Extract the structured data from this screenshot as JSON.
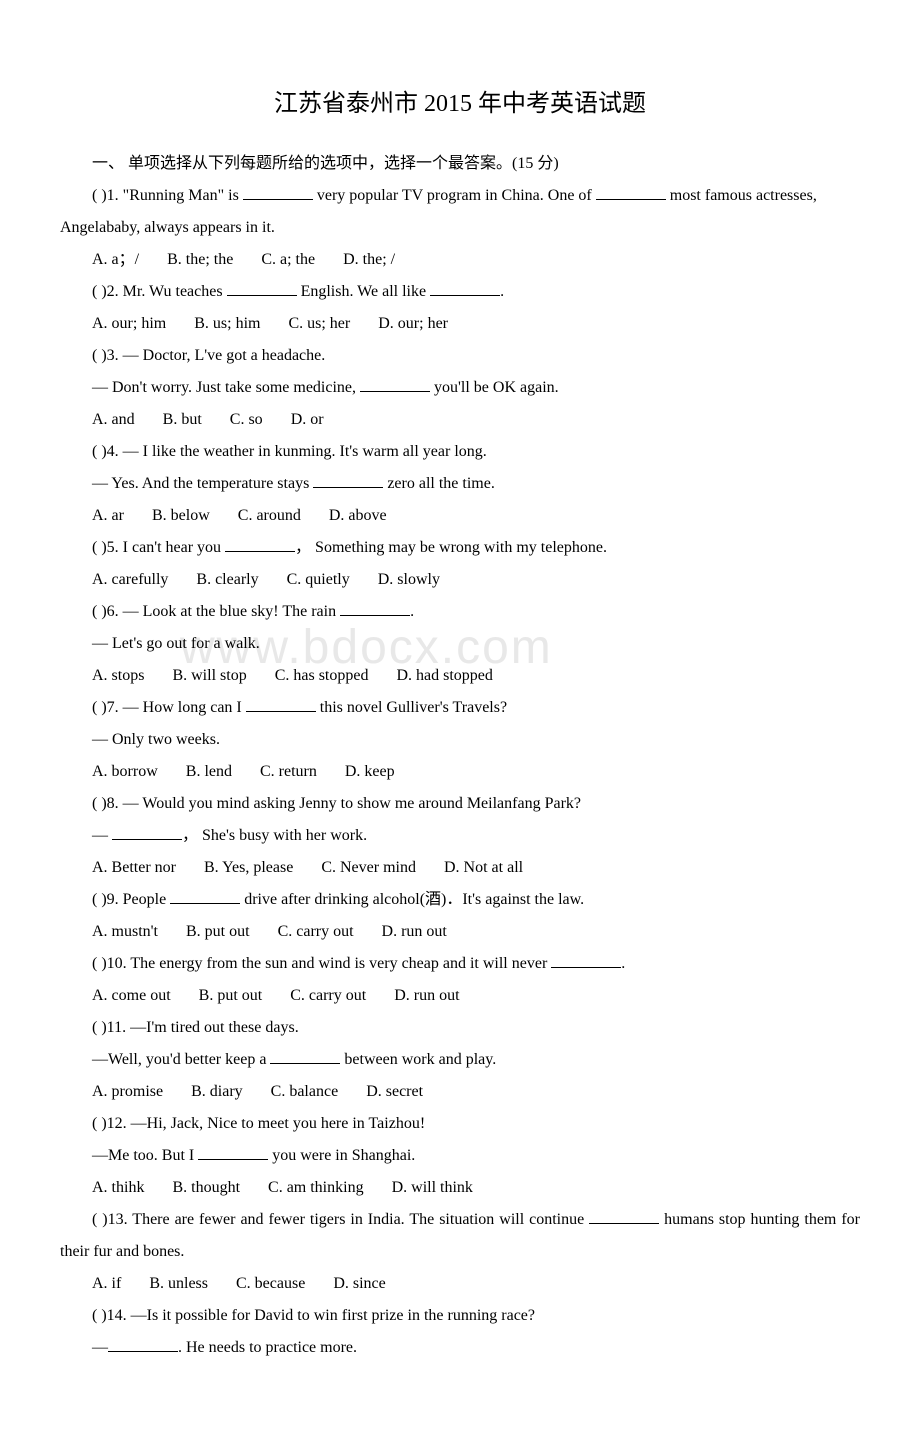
{
  "title": "江苏省泰州市 2015 年中考英语试题",
  "section_header": "一、 单项选择从下列每题所给的选项中，选择一个最答案。(15 分)",
  "watermark": "www.bdocx.com",
  "questions": [
    {
      "num": "1",
      "text_parts": [
        "(      )1. \"Running Man\" is ",
        " very popular TV program in China. One of ",
        " most famous actresses, Angelababy, always appears in it."
      ],
      "options": [
        "A. a；/",
        "B. the; the",
        "C. a; the",
        "D. the; /"
      ]
    },
    {
      "num": "2",
      "text_parts": [
        "(      )2. Mr. Wu teaches ",
        " English. We all like ",
        "."
      ],
      "options": [
        "A. our; him",
        "B. us; him",
        "C. us; her",
        "D. our; her"
      ]
    },
    {
      "num": "3",
      "line1": "(      )3. — Doctor, L've got a headache.",
      "line2_parts": [
        "— Don't worry. Just take some medicine,  ",
        " you'll be OK again."
      ],
      "options": [
        "A. and",
        "B. but",
        "C. so",
        "D. or"
      ]
    },
    {
      "num": "4",
      "line1": "(      )4. — I like the weather in kunming. It's warm all year long.",
      "line2_parts": [
        "— Yes. And the temperature stays ",
        " zero all the time."
      ],
      "options": [
        "A. ar",
        "B. below",
        "C. around",
        "D. above"
      ]
    },
    {
      "num": "5",
      "text_parts": [
        "(      )5. I can't hear you ",
        "，  Something may be wrong with my telephone."
      ],
      "options": [
        "A. carefully",
        "B. clearly",
        "C. quietly",
        "D. slowly"
      ]
    },
    {
      "num": "6",
      "line1_parts": [
        "(      )6. — Look at the blue sky! The rain ",
        "."
      ],
      "line2": "— Let's go out for a walk.",
      "options": [
        "A. stops",
        "B. will stop",
        "C. has stopped",
        "D. had stopped"
      ]
    },
    {
      "num": "7",
      "line1_parts": [
        "(      )7. — How long can I ",
        " this novel Gulliver's Travels?"
      ],
      "line2": "— Only two weeks.",
      "options": [
        "A. borrow",
        "B. lend",
        "C. return",
        "D. keep"
      ]
    },
    {
      "num": "8",
      "line1": "(      )8. — Would you mind asking Jenny to show me around Meilanfang Park?",
      "line2_parts": [
        "— ",
        "，  She's busy with her work."
      ],
      "options": [
        "A. Better nor",
        "B. Yes, please",
        "C. Never mind",
        "D. Not at all"
      ]
    },
    {
      "num": "9",
      "text_parts": [
        "(      )9. People ",
        " drive after drinking alcohol(酒)．It's against the law."
      ],
      "options": [
        "A. mustn't",
        "B. put out",
        "C. carry out",
        "D. run out"
      ]
    },
    {
      "num": "10",
      "text_parts": [
        "(      )10. The energy from the sun and wind is very cheap and it will never ",
        "."
      ],
      "options": [
        "A. come out",
        "B. put out",
        "C. carry out",
        "D. run out"
      ]
    },
    {
      "num": "11",
      "line1": "(      )11. —I'm tired out these days.",
      "line2_parts": [
        "—Well, you'd better keep a ",
        " between work and play."
      ],
      "options": [
        "A. promise",
        "B. diary",
        "C. balance",
        "D. secret"
      ]
    },
    {
      "num": "12",
      "line1": "(      )12. —Hi, Jack, Nice to meet you here in Taizhou!",
      "line2_parts": [
        "—Me too. But I ",
        " you were in Shanghai."
      ],
      "options": [
        "A. thihk",
        "B. thought",
        "C. am thinking",
        "D. will think"
      ]
    },
    {
      "num": "13",
      "text_parts": [
        "(      )13. There are fewer and fewer tigers in India. The situation will continue ",
        " humans stop hunting them for their fur and bones."
      ],
      "options": [
        "A. if",
        "B. unless",
        "C. because",
        "D. since"
      ]
    },
    {
      "num": "14",
      "line1": "(      )14. —Is it possible for David to win first prize in the running race?",
      "line2_parts": [
        "—",
        ". He needs to practice more."
      ],
      "options": []
    }
  ]
}
